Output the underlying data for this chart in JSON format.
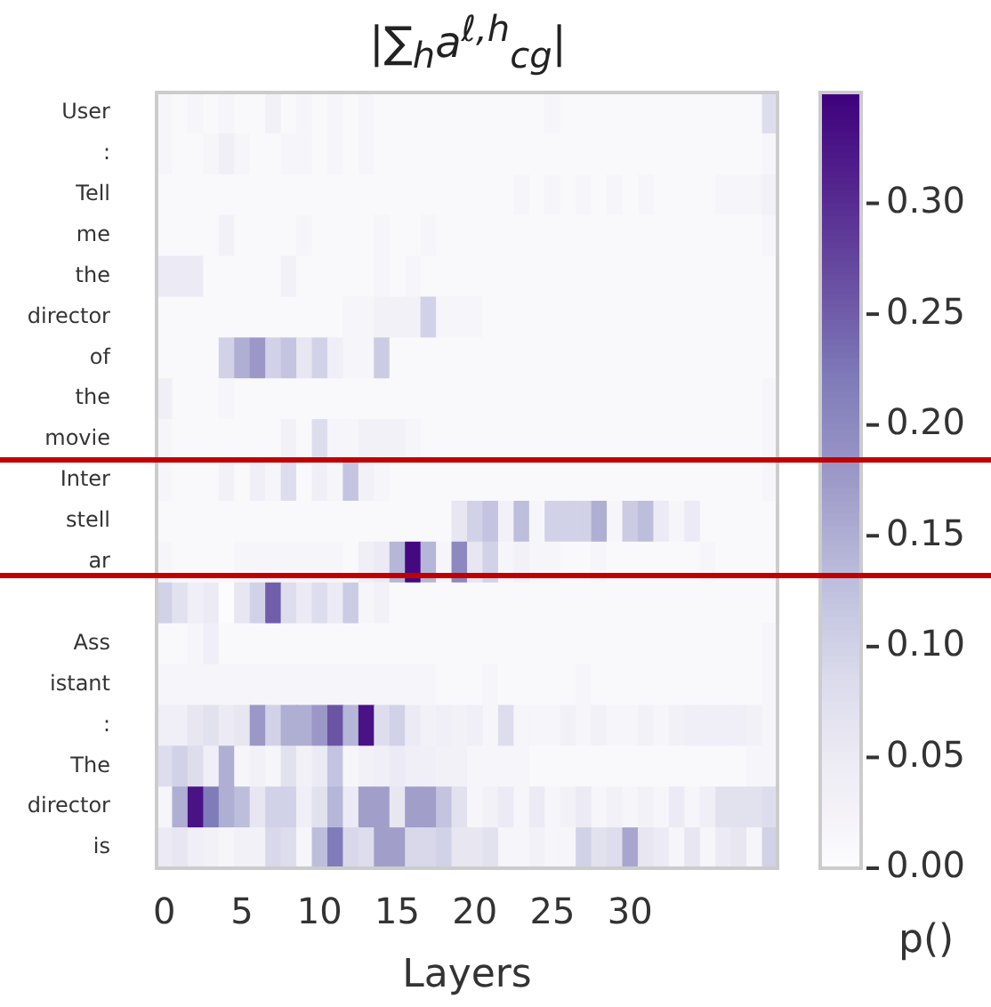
{
  "chart_data": {
    "type": "heatmap",
    "title": "|∑$_{h}$a$^{ℓ,h}$$_{cg}$|",
    "xlabel": "Layers",
    "clabel": "p()",
    "categories": [
      "0",
      null,
      null,
      null,
      null,
      "5",
      null,
      null,
      null,
      null,
      "10",
      null,
      null,
      null,
      null,
      "15",
      null,
      null,
      null,
      null,
      "20",
      null,
      null,
      null,
      null,
      "25",
      null,
      null,
      null,
      null,
      "30",
      null,
      null,
      null,
      null,
      null,
      null,
      null,
      null,
      null
    ],
    "y_categories": [
      "User",
      ":",
      "Tell",
      "me",
      "the",
      "director",
      "of",
      "the",
      "movie",
      "Inter",
      "stell",
      "ar",
      null,
      "Ass",
      "istant",
      ":",
      "The",
      "director",
      "is"
    ],
    "clim": [
      0,
      0.35
    ],
    "cticks": [
      {
        "value": 0,
        "label": "0.00"
      },
      {
        "value": 0.05,
        "label": "0.05"
      },
      {
        "value": 0.1,
        "label": "0.10"
      },
      {
        "value": 0.15,
        "label": "0.15"
      },
      {
        "value": 0.2,
        "label": "0.20"
      },
      {
        "value": 0.25,
        "label": "0.25"
      },
      {
        "value": 0.3,
        "label": "0.30"
      }
    ],
    "cells": [
      [
        0.02,
        0.01,
        0.02,
        0.01,
        0.02,
        0.01,
        0.01,
        0.03,
        0.01,
        0.02,
        0.01,
        0.02,
        0.01,
        0.02,
        0.01,
        0.01,
        0.01,
        0.01,
        0.01,
        0.01,
        0.01,
        0.01,
        0.01,
        0.01,
        0.01,
        0.02,
        0.01,
        0.01,
        0.01,
        0.01,
        0.01,
        0.01,
        0.01,
        0.01,
        0.01,
        0.01,
        0.01,
        0.01,
        0.01,
        0.08
      ],
      [
        0.02,
        0.01,
        0.01,
        0.02,
        0.04,
        0.02,
        0.01,
        0.01,
        0.02,
        0.02,
        0.01,
        0.02,
        0.01,
        0.02,
        0.01,
        0.01,
        0.01,
        0.01,
        0.01,
        0.01,
        0.01,
        0.01,
        0.01,
        0.01,
        0.01,
        0.01,
        0.01,
        0.01,
        0.01,
        0.01,
        0.01,
        0.01,
        0.01,
        0.01,
        0.01,
        0.01,
        0.01,
        0.01,
        0.01,
        0.02
      ],
      [
        0.01,
        0.01,
        0.01,
        0.01,
        0.01,
        0.01,
        0.01,
        0.01,
        0.01,
        0.01,
        0.01,
        0.01,
        0.01,
        0.01,
        0.01,
        0.01,
        0.01,
        0.01,
        0.01,
        0.01,
        0.01,
        0.01,
        0.01,
        0.02,
        0.01,
        0.02,
        0.01,
        0.02,
        0.01,
        0.02,
        0.01,
        0.02,
        0.01,
        0.01,
        0.01,
        0.01,
        0.02,
        0.02,
        0.02,
        0.03
      ],
      [
        0.01,
        0.01,
        0.01,
        0.01,
        0.03,
        0.01,
        0.01,
        0.01,
        0.01,
        0.02,
        0.01,
        0.01,
        0.01,
        0.01,
        0.02,
        0.01,
        0.01,
        0.02,
        0.01,
        0.01,
        0.01,
        0.01,
        0.01,
        0.01,
        0.01,
        0.01,
        0.01,
        0.01,
        0.01,
        0.01,
        0.01,
        0.01,
        0.01,
        0.01,
        0.01,
        0.01,
        0.01,
        0.01,
        0.01,
        0.02
      ],
      [
        0.05,
        0.05,
        0.05,
        0.01,
        0.01,
        0.01,
        0.01,
        0.01,
        0.03,
        0.01,
        0.01,
        0.01,
        0.01,
        0.01,
        0.02,
        0.01,
        0.02,
        0.01,
        0.01,
        0.01,
        0.01,
        0.01,
        0.01,
        0.01,
        0.01,
        0.01,
        0.01,
        0.01,
        0.01,
        0.01,
        0.01,
        0.01,
        0.01,
        0.01,
        0.01,
        0.01,
        0.01,
        0.01,
        0.01,
        0.01
      ],
      [
        0.01,
        0.01,
        0.01,
        0.01,
        0.01,
        0.01,
        0.01,
        0.01,
        0.01,
        0.01,
        0.01,
        0.01,
        0.02,
        0.02,
        0.03,
        0.03,
        0.03,
        0.1,
        0.02,
        0.02,
        0.02,
        0.01,
        0.01,
        0.01,
        0.01,
        0.01,
        0.01,
        0.01,
        0.01,
        0.01,
        0.01,
        0.01,
        0.01,
        0.01,
        0.01,
        0.01,
        0.01,
        0.01,
        0.01,
        0.01
      ],
      [
        0.01,
        0.01,
        0.01,
        0.01,
        0.1,
        0.15,
        0.18,
        0.1,
        0.12,
        0.06,
        0.1,
        0.04,
        0.02,
        0.02,
        0.11,
        0.01,
        0.01,
        0.01,
        0.01,
        0.01,
        0.01,
        0.01,
        0.01,
        0.01,
        0.01,
        0.01,
        0.01,
        0.01,
        0.01,
        0.01,
        0.01,
        0.01,
        0.01,
        0.01,
        0.01,
        0.01,
        0.01,
        0.01,
        0.01,
        0.01
      ],
      [
        0.04,
        0.01,
        0.01,
        0.01,
        0.02,
        0.01,
        0.01,
        0.01,
        0.01,
        0.01,
        0.01,
        0.01,
        0.01,
        0.01,
        0.01,
        0.01,
        0.01,
        0.01,
        0.01,
        0.01,
        0.01,
        0.01,
        0.01,
        0.01,
        0.01,
        0.01,
        0.01,
        0.01,
        0.01,
        0.01,
        0.01,
        0.01,
        0.01,
        0.01,
        0.01,
        0.01,
        0.01,
        0.01,
        0.01,
        0.02
      ],
      [
        0.02,
        0.01,
        0.01,
        0.01,
        0.01,
        0.01,
        0.01,
        0.01,
        0.03,
        0.01,
        0.08,
        0.02,
        0.02,
        0.03,
        0.03,
        0.03,
        0.02,
        0.01,
        0.01,
        0.01,
        0.01,
        0.01,
        0.01,
        0.01,
        0.01,
        0.01,
        0.01,
        0.01,
        0.01,
        0.01,
        0.01,
        0.01,
        0.01,
        0.01,
        0.01,
        0.01,
        0.01,
        0.01,
        0.01,
        0.02
      ],
      [
        0.02,
        0.01,
        0.01,
        0.01,
        0.03,
        0.01,
        0.04,
        0.02,
        0.08,
        0.01,
        0.04,
        0.02,
        0.12,
        0.03,
        0.02,
        0.01,
        0.01,
        0.01,
        0.01,
        0.01,
        0.01,
        0.01,
        0.01,
        0.01,
        0.01,
        0.01,
        0.01,
        0.01,
        0.01,
        0.01,
        0.01,
        0.01,
        0.01,
        0.01,
        0.01,
        0.01,
        0.01,
        0.01,
        0.01,
        0.02
      ],
      [
        0.01,
        0.01,
        0.01,
        0.01,
        0.01,
        0.01,
        0.01,
        0.01,
        0.01,
        0.01,
        0.01,
        0.01,
        0.01,
        0.01,
        0.01,
        0.01,
        0.01,
        0.01,
        0.01,
        0.06,
        0.1,
        0.12,
        0.03,
        0.13,
        0.02,
        0.1,
        0.1,
        0.1,
        0.15,
        0.02,
        0.11,
        0.13,
        0.05,
        0.02,
        0.05,
        0.01,
        0.01,
        0.01,
        0.01,
        0.01
      ],
      [
        0.02,
        0.01,
        0.01,
        0.01,
        0.01,
        0.02,
        0.02,
        0.02,
        0.02,
        0.02,
        0.02,
        0.02,
        0.01,
        0.04,
        0.05,
        0.14,
        0.34,
        0.14,
        0.02,
        0.2,
        0.06,
        0.1,
        0.02,
        0.03,
        0.02,
        0.02,
        0.01,
        0.01,
        0.02,
        0.01,
        0.01,
        0.01,
        0.01,
        0.01,
        0.01,
        0.02,
        0.01,
        0.01,
        0.01,
        0.01
      ],
      [
        0.1,
        0.07,
        0.04,
        0.05,
        0.0,
        0.06,
        0.1,
        0.25,
        0.08,
        0.05,
        0.08,
        0.05,
        0.11,
        0.02,
        0.03,
        0.01,
        0.01,
        0.01,
        0.01,
        0.01,
        0.01,
        0.01,
        0.01,
        0.01,
        0.01,
        0.01,
        0.01,
        0.01,
        0.01,
        0.01,
        0.01,
        0.01,
        0.01,
        0.01,
        0.01,
        0.01,
        0.01,
        0.01,
        0.01,
        0.01
      ],
      [
        0.01,
        0.01,
        0.02,
        0.04,
        0.01,
        0.01,
        0.01,
        0.01,
        0.01,
        0.01,
        0.01,
        0.01,
        0.01,
        0.01,
        0.01,
        0.01,
        0.01,
        0.01,
        0.01,
        0.01,
        0.01,
        0.01,
        0.01,
        0.01,
        0.01,
        0.01,
        0.01,
        0.01,
        0.01,
        0.01,
        0.01,
        0.01,
        0.01,
        0.01,
        0.01,
        0.01,
        0.01,
        0.01,
        0.01,
        0.02
      ],
      [
        0.02,
        0.02,
        0.02,
        0.02,
        0.02,
        0.02,
        0.02,
        0.02,
        0.02,
        0.02,
        0.02,
        0.02,
        0.02,
        0.02,
        0.02,
        0.02,
        0.02,
        0.02,
        0.01,
        0.01,
        0.01,
        0.02,
        0.01,
        0.01,
        0.01,
        0.01,
        0.01,
        0.02,
        0.01,
        0.01,
        0.01,
        0.01,
        0.01,
        0.01,
        0.01,
        0.01,
        0.01,
        0.01,
        0.01,
        0.02
      ],
      [
        0.04,
        0.04,
        0.06,
        0.07,
        0.05,
        0.06,
        0.18,
        0.1,
        0.15,
        0.15,
        0.18,
        0.26,
        0.14,
        0.33,
        0.08,
        0.1,
        0.05,
        0.03,
        0.04,
        0.03,
        0.04,
        0.02,
        0.08,
        0.02,
        0.02,
        0.02,
        0.03,
        0.02,
        0.03,
        0.02,
        0.02,
        0.03,
        0.02,
        0.03,
        0.04,
        0.04,
        0.04,
        0.04,
        0.03,
        0.02
      ],
      [
        0.08,
        0.1,
        0.08,
        0.04,
        0.15,
        0.02,
        0.03,
        0.02,
        0.07,
        0.03,
        0.05,
        0.12,
        0.02,
        0.03,
        0.04,
        0.05,
        0.04,
        0.04,
        0.03,
        0.03,
        0.02,
        0.02,
        0.02,
        0.02,
        0.01,
        0.01,
        0.01,
        0.01,
        0.01,
        0.01,
        0.01,
        0.01,
        0.01,
        0.01,
        0.01,
        0.01,
        0.01,
        0.01,
        0.02,
        0.02
      ],
      [
        0.02,
        0.15,
        0.33,
        0.22,
        0.15,
        0.13,
        0.06,
        0.1,
        0.1,
        0.04,
        0.07,
        0.14,
        0.05,
        0.17,
        0.17,
        0.06,
        0.17,
        0.17,
        0.12,
        0.07,
        0.02,
        0.03,
        0.05,
        0.02,
        0.05,
        0.02,
        0.03,
        0.05,
        0.02,
        0.03,
        0.02,
        0.03,
        0.02,
        0.05,
        0.02,
        0.04,
        0.07,
        0.07,
        0.07,
        0.08
      ],
      [
        0.05,
        0.06,
        0.04,
        0.03,
        0.02,
        0.03,
        0.03,
        0.09,
        0.08,
        0.02,
        0.13,
        0.22,
        0.09,
        0.08,
        0.17,
        0.17,
        0.09,
        0.09,
        0.1,
        0.06,
        0.06,
        0.07,
        0.02,
        0.02,
        0.03,
        0.02,
        0.02,
        0.1,
        0.07,
        0.08,
        0.16,
        0.06,
        0.05,
        0.02,
        0.06,
        0.02,
        0.05,
        0.06,
        0.02,
        0.1
      ]
    ]
  }
}
